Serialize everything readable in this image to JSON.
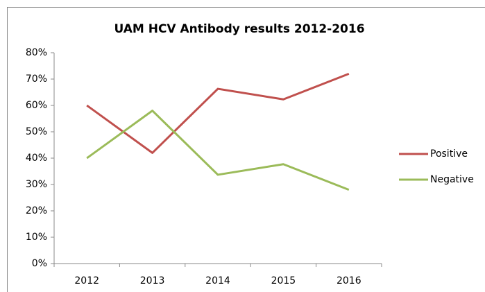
{
  "chart_data": {
    "type": "line",
    "title": "UAM HCV Antibody results 2012-2016",
    "categories": [
      "2012",
      "2013",
      "2014",
      "2015",
      "2016"
    ],
    "series": [
      {
        "name": "Positive",
        "color": "#c0504d",
        "values": [
          60,
          42,
          66.3,
          62.3,
          72
        ]
      },
      {
        "name": "Negative",
        "color": "#9bbb59",
        "values": [
          40,
          58,
          33.7,
          37.7,
          28
        ]
      }
    ],
    "ylim": [
      0,
      80
    ],
    "yticks": [
      {
        "value": 0,
        "label": "0%"
      },
      {
        "value": 10,
        "label": "10%"
      },
      {
        "value": 20,
        "label": "20%"
      },
      {
        "value": 30,
        "label": "30%"
      },
      {
        "value": 40,
        "label": "40%"
      },
      {
        "value": 50,
        "label": "50%"
      },
      {
        "value": 60,
        "label": "60%"
      },
      {
        "value": 70,
        "label": "70%"
      },
      {
        "value": 80,
        "label": "80%"
      }
    ],
    "grid": false,
    "legend": "right"
  }
}
